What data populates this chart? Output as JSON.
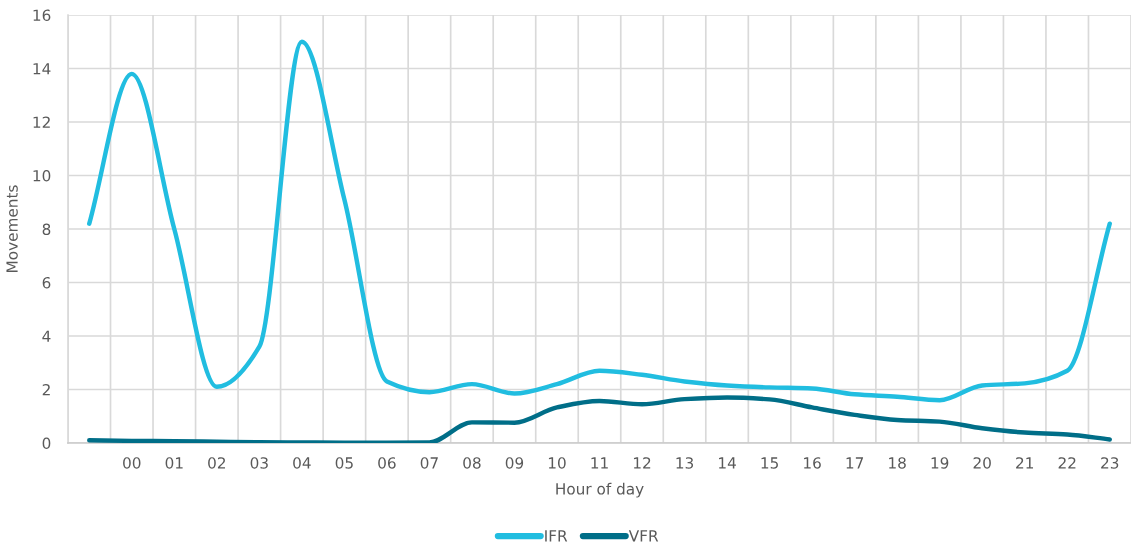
{
  "chart_data": {
    "type": "line",
    "xlabel": "Hour of day",
    "ylabel": "Movements",
    "categories": [
      null,
      "00",
      "01",
      "02",
      "03",
      "04",
      "05",
      "06",
      "07",
      "08",
      "09",
      "10",
      "11",
      "12",
      "13",
      "14",
      "15",
      "16",
      "17",
      "18",
      "19",
      "20",
      "21",
      "22",
      "23"
    ],
    "series": [
      {
        "name": "IFR",
        "color": "#21bde0",
        "values": [
          8.2,
          13.8,
          8.0,
          2.1,
          3.6,
          15.0,
          9.1,
          2.3,
          1.9,
          2.2,
          1.85,
          2.2,
          2.7,
          2.55,
          2.3,
          2.15,
          2.08,
          2.04,
          1.82,
          1.73,
          1.6,
          2.15,
          2.23,
          2.7,
          8.2
        ]
      },
      {
        "name": "VFR",
        "color": "#006e88",
        "values": [
          0.1,
          0.08,
          0.07,
          0.05,
          0.03,
          0.02,
          0.01,
          0.01,
          0.02,
          0.77,
          0.76,
          1.33,
          1.57,
          1.45,
          1.64,
          1.7,
          1.63,
          1.33,
          1.05,
          0.86,
          0.8,
          0.55,
          0.39,
          0.32,
          0.13
        ]
      }
    ],
    "ylim": [
      0,
      16
    ],
    "yticks": [
      0,
      2,
      4,
      6,
      8,
      10,
      12,
      14,
      16
    ],
    "grid": true,
    "legend": "bottom",
    "line_style": "solid"
  }
}
